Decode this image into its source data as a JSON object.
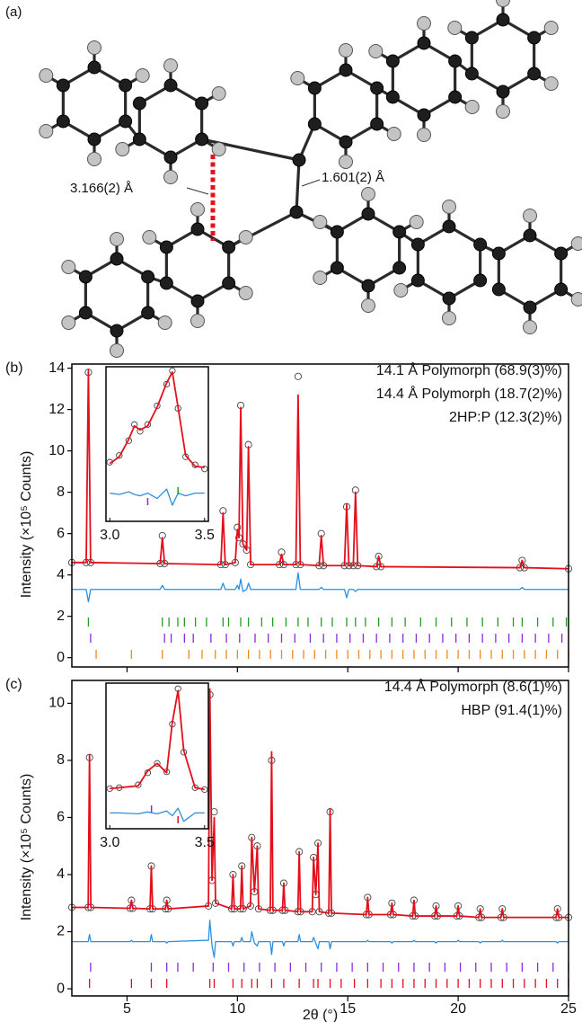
{
  "panel_a": {
    "label": "(a)",
    "annotations": [
      "3.166(2) Å",
      "1.601(2) Å"
    ]
  },
  "chart_data": [
    {
      "type": "line",
      "panel_label": "(b)",
      "y_label": "Intensity (×10⁵ Counts)",
      "xlim": [
        2.5,
        25
      ],
      "ylim": [
        -0.45,
        14.2
      ],
      "xticks": [
        5,
        10,
        15,
        20,
        25
      ],
      "yticks": [
        0,
        2,
        4,
        6,
        8,
        10,
        12,
        14
      ],
      "xtick_labels": false,
      "x": [
        2.5,
        3.15,
        3.25,
        3.35,
        6.5,
        6.6,
        6.7,
        9.25,
        9.35,
        9.45,
        9.9,
        10.0,
        10.07,
        10.15,
        10.25,
        10.42,
        10.5,
        10.6,
        11.9,
        12.0,
        12.1,
        12.65,
        12.75,
        12.85,
        13.7,
        13.8,
        13.9,
        14.85,
        14.95,
        15.05,
        15.25,
        15.35,
        15.45,
        16.3,
        16.4,
        16.5,
        22.8,
        22.9,
        23.0,
        25
      ],
      "observed": {
        "color": "#444444",
        "values": [
          4.6,
          4.6,
          13.8,
          4.6,
          4.55,
          5.9,
          4.55,
          4.5,
          7.1,
          4.5,
          4.6,
          6.3,
          5.8,
          12.2,
          5.5,
          5.2,
          10.3,
          4.5,
          4.5,
          5.1,
          4.5,
          4.5,
          13.6,
          4.5,
          4.45,
          6.0,
          4.45,
          4.45,
          7.3,
          4.45,
          4.45,
          8.1,
          4.45,
          4.4,
          4.9,
          4.4,
          4.35,
          4.7,
          4.35,
          4.3
        ]
      },
      "calculated": {
        "color": "#e3101c",
        "values": [
          4.6,
          4.6,
          13.9,
          4.6,
          4.55,
          5.8,
          4.55,
          4.5,
          7.0,
          4.5,
          4.6,
          6.2,
          5.8,
          12.1,
          5.5,
          5.2,
          10.2,
          4.5,
          4.5,
          5.0,
          4.5,
          4.5,
          12.7,
          4.5,
          4.45,
          5.9,
          4.45,
          4.45,
          7.4,
          4.45,
          4.45,
          8.0,
          4.45,
          4.4,
          4.9,
          4.4,
          4.35,
          4.7,
          4.35,
          4.3
        ]
      },
      "difference": {
        "color": "#2b8fe0",
        "values": [
          3.3,
          3.3,
          2.7,
          3.3,
          3.3,
          3.5,
          3.3,
          3.3,
          3.6,
          3.3,
          3.3,
          3.5,
          3.3,
          3.8,
          3.2,
          3.3,
          3.6,
          3.3,
          3.3,
          3.3,
          3.3,
          3.3,
          4.1,
          3.3,
          3.3,
          3.4,
          3.3,
          3.3,
          2.9,
          3.3,
          3.3,
          3.2,
          3.3,
          3.3,
          3.3,
          3.3,
          3.3,
          3.4,
          3.3,
          3.3
        ]
      },
      "phases": [
        {
          "name": "14.1 Å Polymorph (68.9(3)%)",
          "color": "#1f9e1f",
          "reflections": [
            3.25,
            6.6,
            6.9,
            7.3,
            7.6,
            8.1,
            8.6,
            9.35,
            9.6,
            10.15,
            10.5,
            11.1,
            11.6,
            12.2,
            12.75,
            13.2,
            13.8,
            14.3,
            14.95,
            15.35,
            15.8,
            16.4,
            17.0,
            17.6,
            18.3,
            19.0,
            19.7,
            20.4,
            21.1,
            21.8,
            22.5,
            22.9,
            23.6,
            24.3,
            24.9
          ],
          "inset_reflections": [
            3.36
          ]
        },
        {
          "name": "14.4 Å Polymorph (18.7(2)%)",
          "color": "#8a2be2",
          "reflections": [
            3.35,
            6.7,
            7.0,
            7.6,
            8.0,
            8.8,
            9.5,
            10.1,
            10.8,
            11.4,
            12.0,
            12.6,
            13.3,
            13.9,
            14.5,
            15.1,
            15.7,
            16.3,
            16.9,
            17.5,
            18.1,
            18.7,
            19.3,
            19.9,
            20.5,
            21.1,
            21.7,
            22.3,
            22.9,
            23.5,
            24.1,
            24.7
          ],
          "inset_reflections": [
            3.2
          ]
        },
        {
          "name": "2HP:P (12.3(2)%)",
          "color": "#f08a1c",
          "reflections": [
            3.6,
            5.2,
            6.6,
            7.8,
            8.4,
            9.0,
            9.5,
            10.0,
            10.5,
            11.0,
            11.5,
            12.0,
            12.5,
            13.0,
            13.5,
            14.0,
            14.5,
            15.0,
            15.5,
            16.0,
            16.5,
            17.0,
            17.5,
            18.0,
            18.5,
            19.0,
            19.5,
            20.0,
            20.5,
            21.0,
            21.5,
            22.0,
            22.5,
            23.0,
            23.5,
            24.0,
            24.5,
            25.0
          ],
          "inset_reflections": []
        }
      ],
      "inset": {
        "xlim": [
          2.98,
          3.52
        ],
        "ylim": [
          2.5,
          14
        ],
        "xticks": [
          {
            "value": 3.0,
            "label": "3.0"
          },
          {
            "value": 3.5,
            "label": "3.5"
          }
        ],
        "x": [
          3.0,
          3.05,
          3.1,
          3.13,
          3.16,
          3.2,
          3.25,
          3.3,
          3.33,
          3.36,
          3.4,
          3.45,
          3.5
        ],
        "observed": [
          6.9,
          7.4,
          8.5,
          9.7,
          9.2,
          9.7,
          11.1,
          12.7,
          13.7,
          10.9,
          7.3,
          6.7,
          6.4
        ],
        "calculated": [
          6.8,
          7.3,
          8.6,
          9.6,
          9.3,
          9.6,
          11.0,
          12.8,
          13.6,
          11.0,
          7.4,
          6.6,
          6.5
        ],
        "difference": [
          4.6,
          4.5,
          4.7,
          4.5,
          4.4,
          4.6,
          4.2,
          4.9,
          3.7,
          4.6,
          4.4,
          4.6,
          4.6
        ]
      }
    },
    {
      "type": "line",
      "panel_label": "(c)",
      "y_label": "Intensity (×10⁵ Counts)",
      "x_label": "2θ (°)",
      "xlim": [
        2.5,
        25
      ],
      "ylim": [
        -0.25,
        10.8
      ],
      "xticks": [
        5,
        10,
        15,
        20,
        25
      ],
      "yticks": [
        0,
        2,
        4,
        6,
        8,
        10
      ],
      "xtick_labels": true,
      "x": [
        2.5,
        3.24,
        3.3,
        3.36,
        5.14,
        5.2,
        5.26,
        6.04,
        6.1,
        6.16,
        6.74,
        6.8,
        6.86,
        8.69,
        8.75,
        8.85,
        8.95,
        9.01,
        9.74,
        9.8,
        9.86,
        10.14,
        10.2,
        10.26,
        10.59,
        10.65,
        10.77,
        10.9,
        10.96,
        11.49,
        11.55,
        11.61,
        12.04,
        12.1,
        12.16,
        12.74,
        12.8,
        12.86,
        13.39,
        13.45,
        13.55,
        13.65,
        13.71,
        14.14,
        14.2,
        14.26,
        15.84,
        15.9,
        15.96,
        16.94,
        17.0,
        17.06,
        17.94,
        18.0,
        18.06,
        18.94,
        19.0,
        19.06,
        19.94,
        20.0,
        20.06,
        20.94,
        21.0,
        21.06,
        21.94,
        22.0,
        22.06,
        24.44,
        24.5,
        24.56,
        25
      ],
      "observed": {
        "color": "#444444",
        "values": [
          2.85,
          2.85,
          8.1,
          2.85,
          2.82,
          3.1,
          2.82,
          2.8,
          4.3,
          2.8,
          2.8,
          3.1,
          2.8,
          2.9,
          10.3,
          3.8,
          6.2,
          3.0,
          2.8,
          4.0,
          2.8,
          2.8,
          4.3,
          2.8,
          2.9,
          5.3,
          3.4,
          5.0,
          2.8,
          2.75,
          8.0,
          2.75,
          2.75,
          3.7,
          2.75,
          2.7,
          4.8,
          2.7,
          2.7,
          4.6,
          3.3,
          5.1,
          2.7,
          2.65,
          6.2,
          2.65,
          2.6,
          3.2,
          2.6,
          2.6,
          3.0,
          2.6,
          2.55,
          3.1,
          2.55,
          2.55,
          2.9,
          2.55,
          2.55,
          2.9,
          2.55,
          2.5,
          2.8,
          2.5,
          2.5,
          2.8,
          2.5,
          2.5,
          2.8,
          2.5,
          2.5
        ]
      },
      "calculated": {
        "color": "#e3101c",
        "values": [
          2.85,
          2.85,
          8.2,
          2.85,
          2.82,
          3.1,
          2.82,
          2.8,
          4.3,
          2.8,
          2.8,
          3.1,
          2.8,
          2.9,
          10.5,
          3.8,
          6.0,
          3.0,
          2.8,
          4.0,
          2.8,
          2.8,
          4.3,
          2.8,
          2.9,
          5.3,
          3.4,
          5.0,
          2.8,
          2.75,
          8.3,
          2.75,
          2.75,
          3.7,
          2.75,
          2.7,
          4.8,
          2.7,
          2.7,
          4.6,
          3.3,
          5.1,
          2.7,
          2.65,
          6.3,
          2.65,
          2.6,
          3.2,
          2.6,
          2.6,
          3.0,
          2.6,
          2.55,
          3.1,
          2.55,
          2.55,
          2.9,
          2.55,
          2.55,
          2.9,
          2.55,
          2.5,
          2.8,
          2.5,
          2.5,
          2.8,
          2.5,
          2.5,
          2.8,
          2.5,
          2.5
        ]
      },
      "difference": {
        "color": "#2b8fe0",
        "values": [
          1.65,
          1.65,
          1.9,
          1.65,
          1.65,
          1.7,
          1.65,
          1.65,
          1.9,
          1.65,
          1.65,
          1.6,
          1.65,
          1.7,
          2.4,
          1.5,
          1.1,
          1.65,
          1.65,
          1.5,
          1.65,
          1.65,
          1.8,
          1.65,
          1.65,
          2.0,
          1.6,
          1.5,
          1.65,
          1.65,
          1.2,
          1.65,
          1.65,
          1.5,
          1.65,
          1.65,
          1.9,
          1.65,
          1.65,
          1.8,
          1.6,
          1.4,
          1.65,
          1.65,
          1.4,
          1.65,
          1.65,
          1.7,
          1.65,
          1.65,
          1.6,
          1.65,
          1.65,
          1.7,
          1.65,
          1.65,
          1.6,
          1.65,
          1.65,
          1.7,
          1.65,
          1.65,
          1.6,
          1.65,
          1.65,
          1.7,
          1.65,
          1.65,
          1.6,
          1.65,
          1.65
        ]
      },
      "phases": [
        {
          "name": "14.4 Å Polymorph (8.6(1)%)",
          "color": "#8a2be2",
          "reflections": [
            3.35,
            6.1,
            6.8,
            7.3,
            8.0,
            8.9,
            9.6,
            10.3,
            11.0,
            11.7,
            12.4,
            13.1,
            13.8,
            14.5,
            15.2,
            15.9,
            16.6,
            17.3,
            18.0,
            18.7,
            19.4,
            20.1,
            20.8,
            21.5,
            22.2,
            22.9,
            23.6,
            24.3,
            25.0
          ],
          "inset_reflections": [
            3.22
          ]
        },
        {
          "name": "HBP (91.4(1)%)",
          "color": "#e3101c",
          "reflections": [
            3.3,
            5.2,
            6.1,
            6.8,
            8.75,
            8.95,
            9.8,
            10.2,
            10.65,
            10.9,
            11.55,
            12.1,
            12.8,
            13.45,
            13.65,
            14.2,
            14.7,
            15.3,
            15.9,
            16.5,
            17.0,
            17.5,
            18.0,
            18.5,
            19.0,
            19.5,
            20.0,
            20.5,
            21.0,
            21.5,
            22.0,
            22.5,
            23.0,
            23.5,
            24.0,
            24.5,
            25.0
          ],
          "inset_reflections": [
            3.36
          ]
        }
      ],
      "inset": {
        "xlim": [
          2.98,
          3.52
        ],
        "ylim": [
          0.8,
          8.6
        ],
        "xticks": [
          {
            "value": 3.0,
            "label": "3.0"
          },
          {
            "value": 3.5,
            "label": "3.5"
          }
        ],
        "x": [
          3.0,
          3.05,
          3.15,
          3.2,
          3.25,
          3.3,
          3.33,
          3.36,
          3.39,
          3.45,
          3.5
        ],
        "observed": [
          2.95,
          3.0,
          3.15,
          3.8,
          4.3,
          3.85,
          6.4,
          8.3,
          4.9,
          3.0,
          2.9
        ],
        "calculated": [
          2.95,
          3.0,
          3.1,
          3.9,
          4.3,
          3.8,
          6.5,
          8.2,
          5.0,
          3.0,
          2.9
        ],
        "difference": [
          1.65,
          1.65,
          1.6,
          1.7,
          1.6,
          1.75,
          1.5,
          1.9,
          1.2,
          1.65,
          1.65
        ]
      }
    }
  ]
}
